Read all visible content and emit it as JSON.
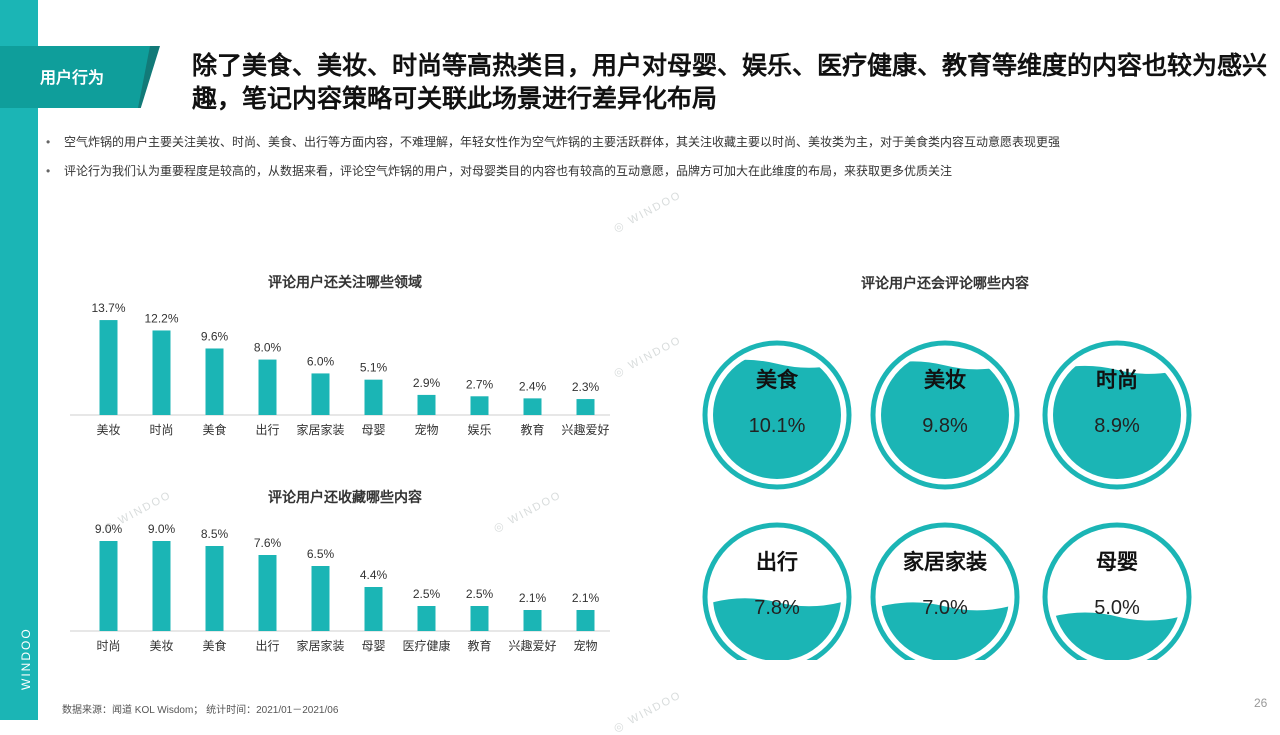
{
  "section_tag": "用户行为",
  "headline": "除了美食、美妆、时尚等高热类目，用户对母婴、娱乐、医疗健康、教育等维度的内容也较为感兴趣，笔记内容策略可关联此场景进行差异化布局",
  "bullets": [
    "空气炸锅的用户主要关注美妆、时尚、美食、出行等方面内容，不难理解，年轻女性作为空气炸锅的主要活跃群体，其关注收藏主要以时尚、美妆类为主，对于美食类内容互动意愿表现更强",
    "评论行为我们认为重要程度是较高的，从数据来看，评论空气炸锅的用户，对母婴类目的内容也有较高的互动意愿，品牌方可加大在此维度的布局，来获取更多优质关注"
  ],
  "brand": "WINDOO",
  "footer": "数据来源：闻道 KOL Wisdom；  统计时间：2021/01－2021/06",
  "page_number": "26",
  "colors": {
    "accent": "#1bb5b5",
    "dark_teal": "#127a78",
    "bar": "#1bb5b5"
  },
  "chart_data": [
    {
      "type": "bar",
      "title": "评论用户还关注哪些领域",
      "categories": [
        "美妆",
        "时尚",
        "美食",
        "出行",
        "家居家装",
        "母婴",
        "宠物",
        "娱乐",
        "教育",
        "兴趣爱好"
      ],
      "values": [
        13.7,
        12.2,
        9.6,
        8.0,
        6.0,
        5.1,
        2.9,
        2.7,
        2.4,
        2.3
      ],
      "value_labels": [
        "13.7%",
        "12.2%",
        "9.6%",
        "8.0%",
        "6.0%",
        "5.1%",
        "2.9%",
        "2.7%",
        "2.4%",
        "2.3%"
      ],
      "ylim": [
        0,
        14
      ]
    },
    {
      "type": "bar",
      "title": "评论用户还收藏哪些内容",
      "categories": [
        "时尚",
        "美妆",
        "美食",
        "出行",
        "家居家装",
        "母婴",
        "医疗健康",
        "教育",
        "兴趣爱好",
        "宠物"
      ],
      "values": [
        9.0,
        9.0,
        8.5,
        7.6,
        6.5,
        4.4,
        2.5,
        2.5,
        2.1,
        2.1
      ],
      "value_labels": [
        "9.0%",
        "9.0%",
        "8.5%",
        "7.6%",
        "6.5%",
        "4.4%",
        "2.5%",
        "2.5%",
        "2.1%",
        "2.1%"
      ],
      "ylim": [
        0,
        9.2
      ]
    },
    {
      "type": "bubble-fill",
      "title": "评论用户还会评论哪些内容",
      "categories": [
        "美食",
        "美妆",
        "时尚",
        "出行",
        "家居家装",
        "母婴"
      ],
      "values": [
        10.1,
        9.8,
        8.9,
        7.8,
        7.0,
        5.0
      ],
      "value_labels": [
        "10.1%",
        "9.8%",
        "8.9%",
        "7.8%",
        "7.0%",
        "5.0%"
      ]
    }
  ]
}
